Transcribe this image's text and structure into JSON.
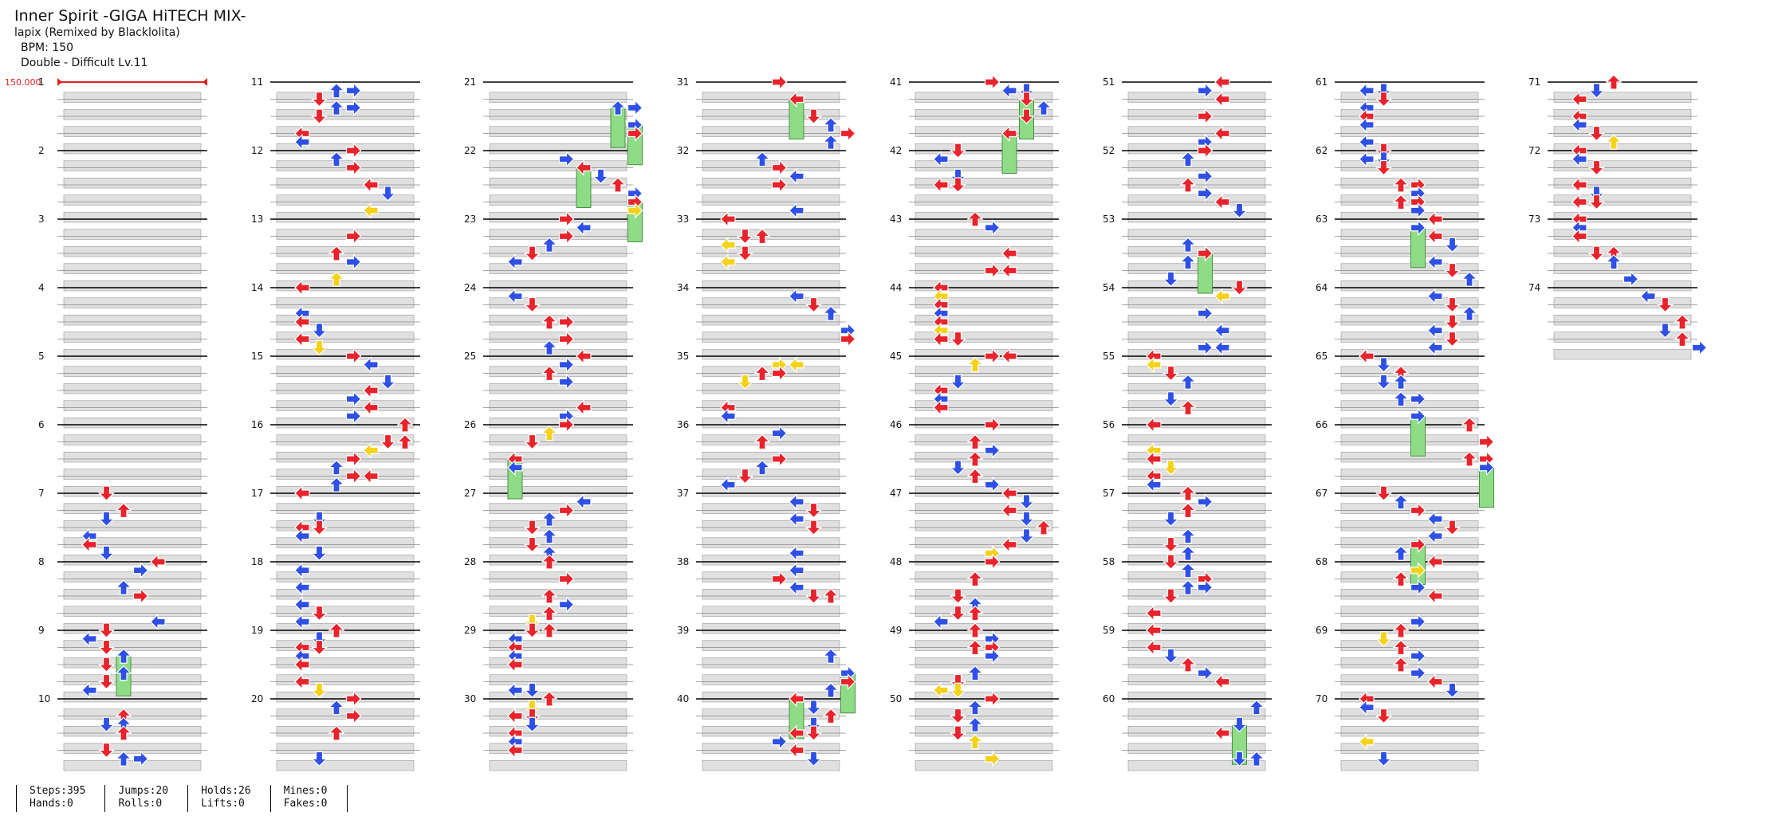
{
  "song": {
    "title": "Inner Spirit -GIGA HiTECH MIX-",
    "artist": "lapix (Remixed by Blacklolita)",
    "bpm_label": "BPM: 150",
    "chart_label": "Double - Difficult Lv.11"
  },
  "bpm_marker": "150.000",
  "measure_count": 74,
  "stats": {
    "steps": "Steps:395",
    "hands": "Hands:0",
    "jumps": "Jumps:20",
    "rolls": "Rolls:0",
    "holds": "Holds:26",
    "lifts": "Lifts:0",
    "mines": "Mines:0",
    "fakes": "Fakes:0"
  },
  "colors": {
    "quarter_note": "#e8232b",
    "eighth_note": "#2f50e6",
    "sixteenth_note": "#f5d21a",
    "hold_body": "#8fdc86",
    "beat_band": "#e0e0e0",
    "bpm_line": "#e02020"
  },
  "icons": [
    "arrow-left-icon",
    "arrow-down-icon",
    "arrow-up-icon",
    "arrow-right-icon",
    "hold-note-icon"
  ]
}
